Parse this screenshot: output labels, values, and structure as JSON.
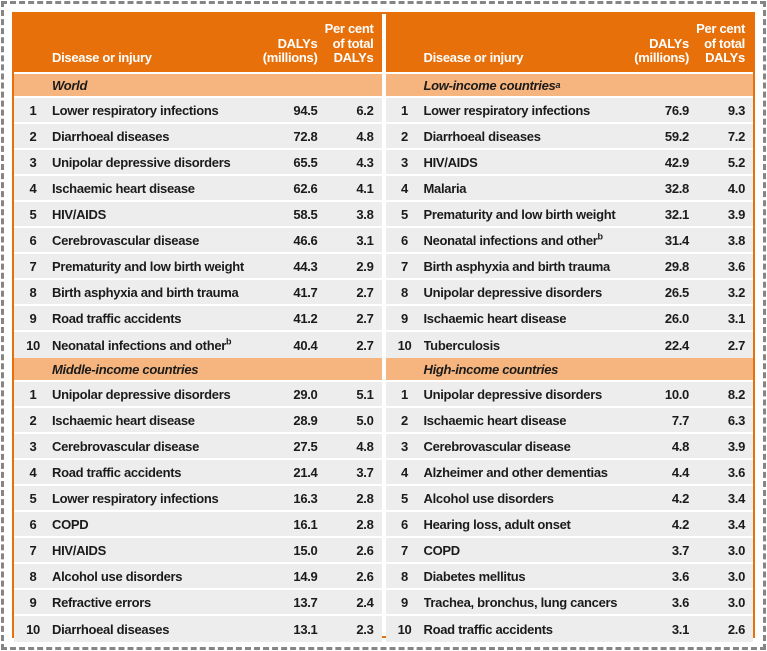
{
  "colors": {
    "header_orange": "#E7700A",
    "section_band_peach": "#F6B57E",
    "row_gray": "#EDEDED",
    "table_border_orange": "#E7700A",
    "selection_dash_gray": "#858585",
    "header_text": "#FFFFFF",
    "body_text": "#1B1B1B"
  },
  "columns": {
    "disease": "Disease or injury",
    "dalys": "DALYs\n(millions)",
    "percent": "Per cent\nof total\nDALYs"
  },
  "panels": [
    {
      "sections": [
        {
          "title": "World",
          "sup": "",
          "rows": [
            {
              "rank": "1",
              "disease": "Lower respiratory infections",
              "sup": "",
              "dalys": "94.5",
              "percent": "6.2"
            },
            {
              "rank": "2",
              "disease": "Diarrhoeal diseases",
              "sup": "",
              "dalys": "72.8",
              "percent": "4.8"
            },
            {
              "rank": "3",
              "disease": "Unipolar depressive disorders",
              "sup": "",
              "dalys": "65.5",
              "percent": "4.3"
            },
            {
              "rank": "4",
              "disease": "Ischaemic heart disease",
              "sup": "",
              "dalys": "62.6",
              "percent": "4.1"
            },
            {
              "rank": "5",
              "disease": "HIV/AIDS",
              "sup": "",
              "dalys": "58.5",
              "percent": "3.8"
            },
            {
              "rank": "6",
              "disease": "Cerebrovascular disease",
              "sup": "",
              "dalys": "46.6",
              "percent": "3.1"
            },
            {
              "rank": "7",
              "disease": "Prematurity and low birth weight",
              "sup": "",
              "dalys": "44.3",
              "percent": "2.9"
            },
            {
              "rank": "8",
              "disease": "Birth asphyxia and birth trauma",
              "sup": "",
              "dalys": "41.7",
              "percent": "2.7"
            },
            {
              "rank": "9",
              "disease": "Road traffic accidents",
              "sup": "",
              "dalys": "41.2",
              "percent": "2.7"
            },
            {
              "rank": "10",
              "disease": "Neonatal infections and other",
              "sup": "b",
              "dalys": "40.4",
              "percent": "2.7"
            }
          ]
        },
        {
          "title": "Middle-income countries",
          "sup": "",
          "rows": [
            {
              "rank": "1",
              "disease": "Unipolar depressive disorders",
              "sup": "",
              "dalys": "29.0",
              "percent": "5.1"
            },
            {
              "rank": "2",
              "disease": "Ischaemic heart disease",
              "sup": "",
              "dalys": "28.9",
              "percent": "5.0"
            },
            {
              "rank": "3",
              "disease": "Cerebrovascular disease",
              "sup": "",
              "dalys": "27.5",
              "percent": "4.8"
            },
            {
              "rank": "4",
              "disease": "Road traffic accidents",
              "sup": "",
              "dalys": "21.4",
              "percent": "3.7"
            },
            {
              "rank": "5",
              "disease": "Lower respiratory infections",
              "sup": "",
              "dalys": "16.3",
              "percent": "2.8"
            },
            {
              "rank": "6",
              "disease": "COPD",
              "sup": "",
              "dalys": "16.1",
              "percent": "2.8"
            },
            {
              "rank": "7",
              "disease": "HIV/AIDS",
              "sup": "",
              "dalys": "15.0",
              "percent": "2.6"
            },
            {
              "rank": "8",
              "disease": "Alcohol use disorders",
              "sup": "",
              "dalys": "14.9",
              "percent": "2.6"
            },
            {
              "rank": "9",
              "disease": "Refractive errors",
              "sup": "",
              "dalys": "13.7",
              "percent": "2.4"
            },
            {
              "rank": "10",
              "disease": "Diarrhoeal diseases",
              "sup": "",
              "dalys": "13.1",
              "percent": "2.3"
            }
          ]
        }
      ]
    },
    {
      "sections": [
        {
          "title": "Low-income countries",
          "sup": "a",
          "rows": [
            {
              "rank": "1",
              "disease": "Lower respiratory infections",
              "sup": "",
              "dalys": "76.9",
              "percent": "9.3"
            },
            {
              "rank": "2",
              "disease": "Diarrhoeal diseases",
              "sup": "",
              "dalys": "59.2",
              "percent": "7.2"
            },
            {
              "rank": "3",
              "disease": "HIV/AIDS",
              "sup": "",
              "dalys": "42.9",
              "percent": "5.2"
            },
            {
              "rank": "4",
              "disease": "Malaria",
              "sup": "",
              "dalys": "32.8",
              "percent": "4.0"
            },
            {
              "rank": "5",
              "disease": "Prematurity and low birth weight",
              "sup": "",
              "dalys": "32.1",
              "percent": "3.9"
            },
            {
              "rank": "6",
              "disease": "Neonatal infections and other",
              "sup": "b",
              "dalys": "31.4",
              "percent": "3.8"
            },
            {
              "rank": "7",
              "disease": "Birth asphyxia and birth trauma",
              "sup": "",
              "dalys": "29.8",
              "percent": "3.6"
            },
            {
              "rank": "8",
              "disease": "Unipolar depressive disorders",
              "sup": "",
              "dalys": "26.5",
              "percent": "3.2"
            },
            {
              "rank": "9",
              "disease": "Ischaemic heart disease",
              "sup": "",
              "dalys": "26.0",
              "percent": "3.1"
            },
            {
              "rank": "10",
              "disease": "Tuberculosis",
              "sup": "",
              "dalys": "22.4",
              "percent": "2.7"
            }
          ]
        },
        {
          "title": "High-income countries",
          "sup": "",
          "rows": [
            {
              "rank": "1",
              "disease": "Unipolar depressive disorders",
              "sup": "",
              "dalys": "10.0",
              "percent": "8.2"
            },
            {
              "rank": "2",
              "disease": "Ischaemic heart disease",
              "sup": "",
              "dalys": "7.7",
              "percent": "6.3"
            },
            {
              "rank": "3",
              "disease": "Cerebrovascular disease",
              "sup": "",
              "dalys": "4.8",
              "percent": "3.9"
            },
            {
              "rank": "4",
              "disease": "Alzheimer and other dementias",
              "sup": "",
              "dalys": "4.4",
              "percent": "3.6"
            },
            {
              "rank": "5",
              "disease": "Alcohol use disorders",
              "sup": "",
              "dalys": "4.2",
              "percent": "3.4"
            },
            {
              "rank": "6",
              "disease": "Hearing loss, adult onset",
              "sup": "",
              "dalys": "4.2",
              "percent": "3.4"
            },
            {
              "rank": "7",
              "disease": "COPD",
              "sup": "",
              "dalys": "3.7",
              "percent": "3.0"
            },
            {
              "rank": "8",
              "disease": "Diabetes mellitus",
              "sup": "",
              "dalys": "3.6",
              "percent": "3.0"
            },
            {
              "rank": "9",
              "disease": "Trachea, bronchus, lung cancers",
              "sup": "",
              "dalys": "3.6",
              "percent": "3.0"
            },
            {
              "rank": "10",
              "disease": "Road traffic accidents",
              "sup": "",
              "dalys": "3.1",
              "percent": "2.6"
            }
          ]
        }
      ]
    }
  ]
}
